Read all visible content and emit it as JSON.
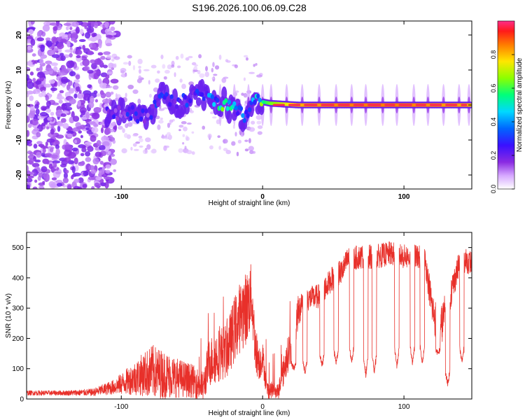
{
  "title": "S196.2026.100.06.09.C28",
  "colors": {
    "snr_line": "#e8302a",
    "spectral_low": "#f3e9ff",
    "spectral_mid": "#6a00ff",
    "spectral_peak": "#ff0000"
  },
  "chart_data": [
    {
      "id": "spectrogram",
      "type": "heatmap",
      "title": "",
      "xlabel": "Height of straight line (km)",
      "ylabel": "Frequency (Hz)",
      "xlim": [
        -167,
        148
      ],
      "ylim": [
        -24,
        24
      ],
      "xticks": [
        -100,
        0,
        100
      ],
      "yticks": [
        -20,
        -10,
        0,
        10,
        20
      ],
      "colorbar": {
        "label": "Normalized spectral amplitude",
        "range": [
          0,
          1
        ],
        "ticks": [
          0.0,
          0.2,
          0.4,
          0.6,
          0.8
        ],
        "colors": [
          "#ffffff",
          "#c77dff",
          "#6a00ff",
          "#1a1aff",
          "#00c8ff",
          "#00ff80",
          "#80ff00",
          "#ffff00",
          "#ff8000",
          "#ff0000",
          "#ff1493"
        ]
      },
      "structure": {
        "noise_region_x": [
          -167,
          -110
        ],
        "noise_freq_spread_hz": 24,
        "ridge": [
          {
            "x": -110,
            "y": -2.0,
            "amp": 0.2
          },
          {
            "x": -95,
            "y": -2.5,
            "amp": 0.25
          },
          {
            "x": -80,
            "y": -3.0,
            "amp": 0.22
          },
          {
            "x": -72,
            "y": 2.5,
            "amp": 0.3
          },
          {
            "x": -60,
            "y": 0.0,
            "amp": 0.25
          },
          {
            "x": -45,
            "y": 4.0,
            "amp": 0.3
          },
          {
            "x": -37,
            "y": 2.0,
            "amp": 0.35
          },
          {
            "x": -28,
            "y": 0.5,
            "amp": 0.55
          },
          {
            "x": -20,
            "y": -1.5,
            "amp": 0.45
          },
          {
            "x": -12,
            "y": -3.5,
            "amp": 0.35
          },
          {
            "x": -7,
            "y": 1.5,
            "amp": 0.45
          },
          {
            "x": 5,
            "y": 0.5,
            "amp": 0.7
          },
          {
            "x": 25,
            "y": 0.0,
            "amp": 0.9
          },
          {
            "x": 60,
            "y": 0.0,
            "amp": 0.95
          },
          {
            "x": 100,
            "y": 0.0,
            "amp": 0.95
          },
          {
            "x": 148,
            "y": 0.0,
            "amp": 0.9
          }
        ],
        "sidelobe_x": [
          -30,
          -20,
          -10,
          0,
          6,
          17,
          28,
          40,
          52,
          63,
          73,
          85,
          95,
          107,
          117,
          128,
          139,
          146
        ]
      }
    },
    {
      "id": "snr",
      "type": "line",
      "title": "",
      "xlabel": "Height of straight line (km)",
      "ylabel": "SNR (10 * v/v)",
      "xlim": [
        -167,
        148
      ],
      "ylim": [
        0,
        550
      ],
      "xticks": [
        -100,
        0,
        100
      ],
      "yticks": [
        0,
        100,
        200,
        300,
        400,
        500
      ],
      "envelope": {
        "x": [
          -167,
          -140,
          -120,
          -105,
          -95,
          -85,
          -78,
          -70,
          -60,
          -50,
          -42,
          -38,
          -30,
          -25,
          -20,
          -15,
          -10,
          -8,
          -5,
          -2,
          0,
          3,
          8,
          12,
          18,
          22,
          25,
          28,
          32,
          40,
          48,
          52,
          56,
          60,
          70,
          80,
          90,
          100,
          110,
          115,
          120,
          125,
          130,
          135,
          140,
          148
        ],
        "base": [
          20,
          20,
          22,
          40,
          60,
          80,
          90,
          80,
          70,
          60,
          40,
          120,
          150,
          160,
          230,
          280,
          310,
          350,
          160,
          120,
          140,
          30,
          30,
          40,
          150,
          200,
          280,
          330,
          330,
          340,
          390,
          410,
          420,
          460,
          470,
          470,
          480,
          470,
          470,
          460,
          300,
          220,
          300,
          380,
          460,
          450
        ],
        "noise": [
          8,
          8,
          12,
          25,
          45,
          70,
          90,
          80,
          65,
          55,
          50,
          80,
          90,
          90,
          110,
          120,
          120,
          100,
          80,
          60,
          50,
          30,
          25,
          40,
          60,
          70,
          60,
          50,
          40,
          40,
          40,
          40,
          40,
          40,
          40,
          40,
          40,
          40,
          40,
          40,
          60,
          70,
          60,
          50,
          40,
          40
        ]
      },
      "dips": [
        {
          "x": 10,
          "depth": 30
        },
        {
          "x": 22,
          "depth": 90
        },
        {
          "x": 30,
          "depth": 80
        },
        {
          "x": 42,
          "depth": 100
        },
        {
          "x": 52,
          "depth": 110
        },
        {
          "x": 63,
          "depth": 110
        },
        {
          "x": 73,
          "depth": 70
        },
        {
          "x": 79,
          "depth": 80
        },
        {
          "x": 95,
          "depth": 100
        },
        {
          "x": 106,
          "depth": 110
        },
        {
          "x": 113,
          "depth": 110
        },
        {
          "x": 124,
          "depth": 140
        },
        {
          "x": 131,
          "depth": 40
        },
        {
          "x": 141,
          "depth": 110
        }
      ],
      "series": [
        {
          "name": "SNR",
          "color": "#e8302a"
        }
      ]
    }
  ]
}
